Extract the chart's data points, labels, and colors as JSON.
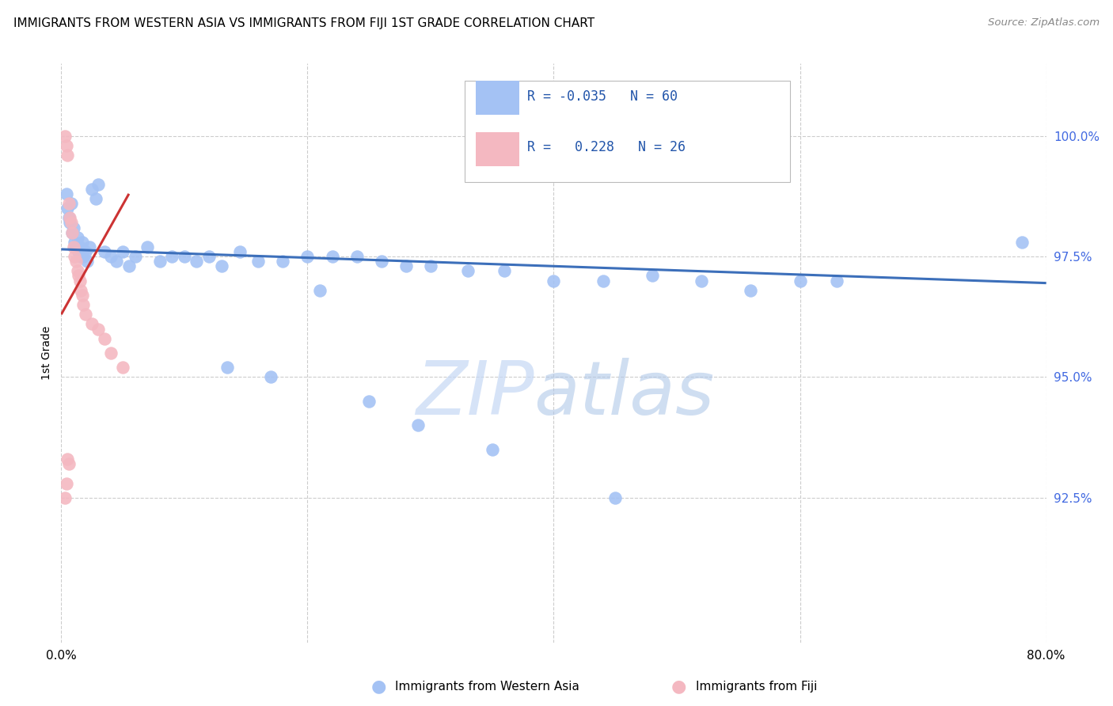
{
  "title": "IMMIGRANTS FROM WESTERN ASIA VS IMMIGRANTS FROM FIJI 1ST GRADE CORRELATION CHART",
  "source": "Source: ZipAtlas.com",
  "ylabel": "1st Grade",
  "legend_label1": "Immigrants from Western Asia",
  "legend_label2": "Immigrants from Fiji",
  "R1": "-0.035",
  "N1": "60",
  "R2": "0.228",
  "N2": "26",
  "color1": "#a4c2f4",
  "color2": "#f4b8c1",
  "trendline1_color": "#3c6fba",
  "trendline2_color": "#cc3333",
  "watermark_zip": "ZIP",
  "watermark_atlas": "atlas",
  "xlim": [
    0.0,
    80.0
  ],
  "ylim": [
    89.5,
    101.5
  ],
  "xticks": [
    0.0,
    20.0,
    40.0,
    60.0,
    80.0
  ],
  "yticks_right": [
    92.5,
    95.0,
    97.5,
    100.0
  ],
  "yticklabels_right": [
    "92.5%",
    "95.0%",
    "97.5%",
    "100.0%"
  ],
  "blue_x": [
    0.4,
    0.5,
    0.6,
    0.7,
    0.8,
    0.9,
    1.0,
    1.1,
    1.2,
    1.3,
    1.4,
    1.5,
    1.6,
    1.7,
    1.8,
    2.0,
    2.1,
    2.3,
    2.5,
    2.8,
    3.0,
    3.5,
    4.0,
    4.5,
    5.0,
    5.5,
    6.0,
    7.0,
    8.0,
    9.0,
    10.0,
    11.0,
    12.0,
    13.0,
    14.5,
    16.0,
    18.0,
    20.0,
    22.0,
    24.0,
    26.0,
    28.0,
    30.0,
    33.0,
    36.0,
    40.0,
    44.0,
    48.0,
    52.0,
    56.0,
    60.0,
    63.0,
    13.5,
    17.0,
    21.0,
    25.0,
    29.0,
    35.0,
    45.0,
    78.0
  ],
  "blue_y": [
    98.8,
    98.5,
    98.3,
    98.2,
    98.6,
    98.0,
    98.1,
    97.8,
    97.7,
    97.9,
    97.6,
    97.7,
    97.5,
    97.8,
    97.5,
    97.6,
    97.4,
    97.7,
    98.9,
    98.7,
    99.0,
    97.6,
    97.5,
    97.4,
    97.6,
    97.3,
    97.5,
    97.7,
    97.4,
    97.5,
    97.5,
    97.4,
    97.5,
    97.3,
    97.6,
    97.4,
    97.4,
    97.5,
    97.5,
    97.5,
    97.4,
    97.3,
    97.3,
    97.2,
    97.2,
    97.0,
    97.0,
    97.1,
    97.0,
    96.8,
    97.0,
    97.0,
    95.2,
    95.0,
    96.8,
    94.5,
    94.0,
    93.5,
    92.5,
    97.8
  ],
  "pink_x": [
    0.3,
    0.4,
    0.5,
    0.6,
    0.7,
    0.8,
    0.9,
    1.0,
    1.1,
    1.2,
    1.3,
    1.4,
    1.5,
    1.6,
    1.7,
    1.8,
    2.0,
    2.5,
    3.0,
    3.5,
    4.0,
    5.0,
    0.5,
    0.6,
    0.4,
    0.3
  ],
  "pink_y": [
    100.0,
    99.8,
    99.6,
    98.6,
    98.3,
    98.2,
    98.0,
    97.7,
    97.5,
    97.4,
    97.2,
    97.1,
    97.0,
    96.8,
    96.7,
    96.5,
    96.3,
    96.1,
    96.0,
    95.8,
    95.5,
    95.2,
    93.3,
    93.2,
    92.8,
    92.5
  ],
  "trendline1_x": [
    0.0,
    80.0
  ],
  "trendline1_y": [
    97.65,
    96.95
  ],
  "trendline2_x": [
    0.0,
    5.5
  ],
  "trendline2_y": [
    96.3,
    98.8
  ]
}
